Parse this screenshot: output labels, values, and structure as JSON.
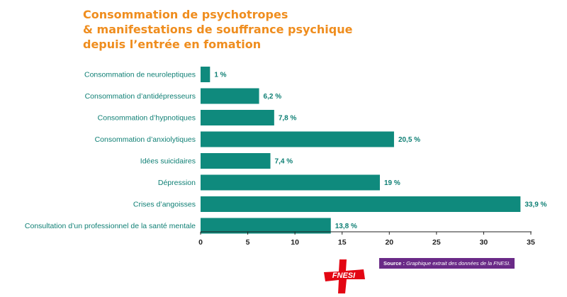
{
  "title_lines": [
    "Consommation de psychotropes",
    "& manifestations de souffrance psychique",
    "depuis l’entrée en fomation"
  ],
  "source": {
    "label": "Source :",
    "text": "Graphique extrait des données de la FNESI."
  },
  "logo_text": "FNESI",
  "colors": {
    "title": "#ef8d1e",
    "bar": "#0f8a7d",
    "label": "#0e7f74",
    "source_bg": "#6a2a87",
    "logo": "#e30613"
  },
  "chart_data": {
    "type": "bar",
    "orientation": "horizontal",
    "categories": [
      "Consommation de neuroleptiques",
      "Consommation d’antidépresseurs",
      "Consommation d’hypnotiques",
      "Consommation d’anxiolytiques",
      "Idées suicidaires",
      "Dépression",
      "Crises d’angoisses",
      "Consultation d’un professionnel de la santé mentale"
    ],
    "values": [
      1,
      6.2,
      7.8,
      20.5,
      7.4,
      19,
      33.9,
      13.8
    ],
    "value_labels": [
      "1 %",
      "6,2 %",
      "7,8 %",
      "20,5 %",
      "7,4 %",
      "19 %",
      "33,9 %",
      "13,8 %"
    ],
    "xlim": [
      0,
      35
    ],
    "xticks": [
      0,
      5,
      10,
      15,
      20,
      25,
      30,
      35
    ],
    "grid": false
  }
}
